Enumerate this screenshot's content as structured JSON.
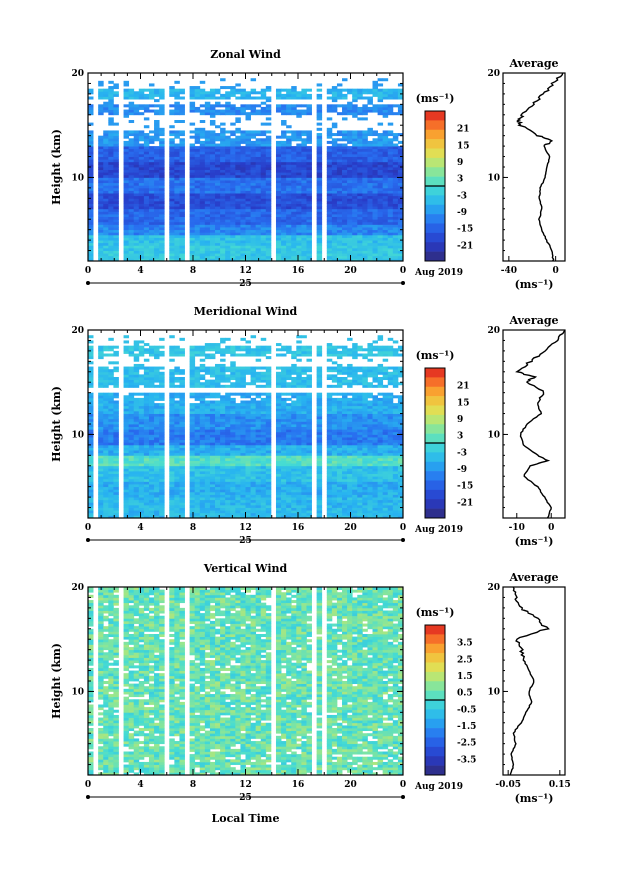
{
  "x_ticks": [
    "0",
    "4",
    "8",
    "12",
    "16",
    "20",
    "0"
  ],
  "date_day": "25",
  "date_month_year": "Aug 2019",
  "height_ticks": [
    "20",
    "10"
  ],
  "height_label": "Height (km)",
  "unit_label": "(ms⁻¹)",
  "avg_title": "Average",
  "xlabel_bottom": "Local Time",
  "chart_data": [
    {
      "type": "heatmap",
      "title": "Zonal Wind",
      "xlabel": "",
      "ylabel": "Height (km)",
      "xlim": [
        0,
        24
      ],
      "ylim": [
        2,
        20
      ],
      "colorbar": {
        "unit": "(ms⁻¹)",
        "ticks": [
          "21",
          "15",
          "9",
          "3",
          "-3",
          "-9",
          "-15",
          "-21"
        ],
        "range": [
          -24,
          24
        ]
      },
      "data_gaps_hours": [
        0.5,
        2.5,
        5.9,
        7.7,
        14.2,
        17.2,
        18.0
      ],
      "bands": [
        {
          "from": 2.0,
          "to": 2.5,
          "value": -3
        },
        {
          "from": 2.5,
          "to": 3.5,
          "value": -3
        },
        {
          "from": 3.5,
          "to": 4.5,
          "value": -4
        },
        {
          "from": 4.5,
          "to": 5.5,
          "value": -10
        },
        {
          "from": 5.5,
          "to": 7.0,
          "value": -13
        },
        {
          "from": 7.0,
          "to": 8.5,
          "value": -16
        },
        {
          "from": 8.5,
          "to": 10.0,
          "value": -12
        },
        {
          "from": 10.0,
          "to": 11.5,
          "value": -17
        },
        {
          "from": 11.5,
          "to": 13.0,
          "value": -14
        },
        {
          "from": 13.0,
          "to": 14.5,
          "value": -8
        },
        {
          "from": 16.0,
          "to": 17.0,
          "value": -9
        },
        {
          "from": 17.5,
          "to": 18.5,
          "value": -5
        }
      ],
      "average": {
        "xlim": [
          -45,
          8
        ],
        "xticks": [
          "-40",
          "0"
        ],
        "xlabel": "(ms⁻¹)",
        "heights": [
          2,
          3,
          4,
          5,
          6,
          7,
          8,
          9,
          10,
          11,
          12,
          13,
          13.5,
          14,
          15,
          15.5,
          16,
          17,
          18,
          19,
          20
        ],
        "values": [
          -2,
          -3,
          -8,
          -12,
          -14,
          -12,
          -14,
          -13,
          -9,
          -7,
          -5,
          -10,
          -2,
          -15,
          -30,
          -32,
          -28,
          -20,
          -10,
          -2,
          6
        ]
      }
    },
    {
      "type": "heatmap",
      "title": "Meridional Wind",
      "xlabel": "",
      "ylabel": "Height (km)",
      "xlim": [
        0,
        24
      ],
      "ylim": [
        2,
        20
      ],
      "colorbar": {
        "unit": "(ms⁻¹)",
        "ticks": [
          "21",
          "15",
          "9",
          "3",
          "-3",
          "-9",
          "-15",
          "-21"
        ],
        "range": [
          -24,
          24
        ]
      },
      "data_gaps_hours": [
        0.5,
        2.5,
        5.9,
        7.7,
        14.2,
        17.2,
        18.0
      ],
      "bands": [
        {
          "from": 2.0,
          "to": 4.0,
          "value": -5
        },
        {
          "from": 4.0,
          "to": 5.5,
          "value": -6
        },
        {
          "from": 5.5,
          "to": 7.0,
          "value": -4
        },
        {
          "from": 7.0,
          "to": 8.0,
          "value": 1
        },
        {
          "from": 8.0,
          "to": 9.0,
          "value": -6
        },
        {
          "from": 9.0,
          "to": 10.5,
          "value": -11
        },
        {
          "from": 10.5,
          "to": 12.0,
          "value": -9
        },
        {
          "from": 12.0,
          "to": 14.0,
          "value": -6
        },
        {
          "from": 14.5,
          "to": 16.5,
          "value": -4
        },
        {
          "from": 17.5,
          "to": 18.5,
          "value": -3
        }
      ],
      "average": {
        "xlim": [
          -14,
          4
        ],
        "xticks": [
          "-10",
          "0"
        ],
        "xlabel": "(ms⁻¹)",
        "heights": [
          2,
          3,
          4,
          5,
          6,
          7,
          7.5,
          8,
          9,
          10,
          11,
          12,
          13,
          14,
          15,
          15.5,
          16,
          17,
          18,
          19,
          20
        ],
        "values": [
          -1,
          0,
          -2,
          -4,
          -8,
          -6,
          -1,
          -4,
          -8,
          -9,
          -7,
          -3,
          -4,
          -2,
          -7,
          -5,
          -10,
          -6,
          -2,
          2,
          4
        ]
      }
    },
    {
      "type": "heatmap",
      "title": "Vertical Wind",
      "xlabel": "Local Time",
      "ylabel": "Height (km)",
      "xlim": [
        0,
        24
      ],
      "ylim": [
        2,
        20
      ],
      "colorbar": {
        "unit": "(ms⁻¹)",
        "ticks": [
          "3.5",
          "2.5",
          "1.5",
          "0.5",
          "-0.5",
          "-1.5",
          "-2.5",
          "-3.5"
        ],
        "range": [
          -4,
          4
        ]
      },
      "data_gaps_hours": [
        0.5,
        2.5,
        5.9,
        7.7,
        14.2,
        17.2,
        18.0
      ],
      "bands": [
        {
          "from": 2.0,
          "to": 20.0,
          "value": 0.3
        }
      ],
      "average": {
        "xlim": [
          -0.07,
          0.17
        ],
        "xticks": [
          "-0.05",
          "0.15"
        ],
        "xlabel": "(ms⁻¹)",
        "heights": [
          2,
          3,
          4,
          5,
          6,
          7,
          8,
          9,
          10,
          11,
          12,
          13,
          14,
          15,
          16,
          17,
          18,
          19,
          20
        ],
        "values": [
          -0.04,
          -0.03,
          -0.04,
          -0.02,
          -0.03,
          0.0,
          0.02,
          0.04,
          0.03,
          0.05,
          0.03,
          0.01,
          0.0,
          -0.02,
          0.1,
          0.06,
          0.0,
          -0.02,
          -0.03
        ]
      }
    }
  ]
}
